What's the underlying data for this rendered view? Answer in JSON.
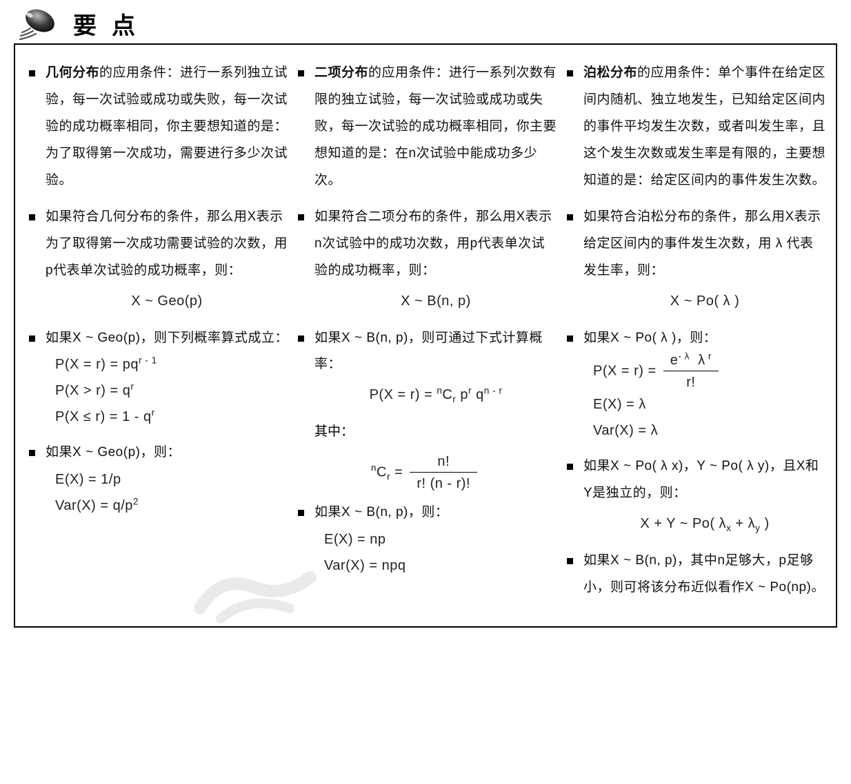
{
  "title": "要点",
  "columns": [
    {
      "items": [
        {
          "type": "text",
          "bold": "几何分布",
          "rest": "的应用条件：进行一系列独立试验，每一次试验或成功或失败，每一次试验的成功概率相同，你主要想知道的是：为了取得第一次成功，需要进行多少次试验。"
        },
        {
          "type": "text",
          "rest": "如果符合几何分布的条件，那么用X表示为了取得第一次成功需要试验的次数，用p代表单次试验的成功概率，则："
        },
        {
          "type": "formula-center",
          "value": "X ~ Geo(p)"
        },
        {
          "type": "text",
          "rest": "如果X ~ Geo(p)，则下列概率算式成立："
        },
        {
          "type": "formula",
          "value": "P(X = r) = pq<sup>r - 1</sup>"
        },
        {
          "type": "formula",
          "value": "P(X > r) = q<sup>r</sup>"
        },
        {
          "type": "formula",
          "value": "P(X ≤ r) = 1 - q<sup>r</sup>"
        },
        {
          "type": "text",
          "rest": "如果X ~ Geo(p)，则："
        },
        {
          "type": "formula",
          "value": "E(X) = 1/p"
        },
        {
          "type": "formula",
          "value": "Var(X) = q/p<sup>2</sup>"
        }
      ]
    },
    {
      "items": [
        {
          "type": "text",
          "bold": "二项分布",
          "rest": "的应用条件：进行一系列次数有限的独立试验，每一次试验或成功或失败，每一次试验的成功概率相同，你主要想知道的是：在n次试验中能成功多少次。"
        },
        {
          "type": "text",
          "rest": "如果符合二项分布的条件，那么用X表示n次试验中的成功次数，用p代表单次试验的成功概率，则："
        },
        {
          "type": "formula-center",
          "value": "X ~ B(n, p)"
        },
        {
          "type": "text",
          "rest": "如果X ~ B(n, p)，则可通过下式计算概率："
        },
        {
          "type": "formula-center",
          "value": "P(X = r) = <sup>n</sup>C<sub>r</sub> p<sup>r</sup> q<sup>n - r</sup>"
        },
        {
          "type": "plain",
          "value": "其中："
        },
        {
          "type": "formula-center-frac",
          "left": "<sup>n</sup>C<sub>r</sub> = ",
          "num": "n!",
          "den": "r! (n - r)!"
        },
        {
          "type": "text",
          "rest": "如果X ~ B(n, p)，则："
        },
        {
          "type": "formula",
          "value": "E(X) = np"
        },
        {
          "type": "formula",
          "value": "Var(X) = npq"
        }
      ]
    },
    {
      "items": [
        {
          "type": "text",
          "bold": "泊松分布",
          "rest": "的应用条件：单个事件在给定区间内随机、独立地发生，已知给定区间内的事件平均发生次数，或者叫发生率，且这个发生次数或发生率是有限的，主要想知道的是：给定区间内的事件发生次数。"
        },
        {
          "type": "text",
          "rest": "如果符合泊松分布的条件，那么用X表示给定区间内的事件发生次数，用 λ 代表发生率，则："
        },
        {
          "type": "formula-center",
          "value": "X ~ Po( λ )"
        },
        {
          "type": "text",
          "rest": "如果X ~ Po( λ )，则："
        },
        {
          "type": "formula-frac",
          "left": "P(X = r) = ",
          "num": "e<sup>- λ</sup>&nbsp; λ<sup> r</sup>",
          "den": "r!"
        },
        {
          "type": "formula",
          "value": "E(X) = λ"
        },
        {
          "type": "formula",
          "value": "Var(X) = λ"
        },
        {
          "type": "text",
          "rest": "如果X ~ Po( λ x)，Y ~ Po( λ y)，且X和Y是独立的，则："
        },
        {
          "type": "formula-center",
          "value": "X + Y ~ Po( λ<sub>x</sub> + λ<sub>y</sub> )"
        },
        {
          "type": "text",
          "rest": "如果X ~ B(n, p)，其中n足够大，p足够小，则可将该分布近似看作X ~ Po(np)。"
        }
      ]
    }
  ]
}
